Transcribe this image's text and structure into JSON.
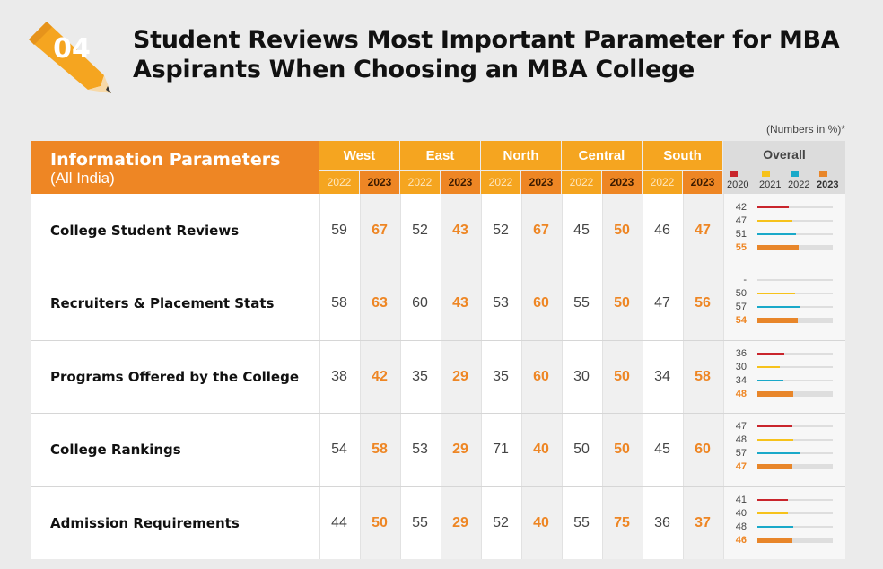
{
  "badge": {
    "number": "04"
  },
  "title": {
    "line1": "Student Reviews Most Important Parameter for MBA",
    "line2": "Aspirants When Choosing an MBA College"
  },
  "units_note": "(Numbers in %)*",
  "header": {
    "param_title": "Information Parameters",
    "param_subtitle": "(All India)",
    "overall": "Overall",
    "year_a": "2022",
    "year_b": "2023",
    "overall_years": [
      "2020",
      "2021",
      "2022",
      "2023"
    ]
  },
  "colors": {
    "2020": "#c9252c",
    "2021": "#f6c21b",
    "2022": "#1aa9c9",
    "2023": "#e8862a",
    "accent": "#ee8624",
    "header": "#f5a520"
  },
  "chart_data": {
    "type": "table",
    "units": "%",
    "regions": [
      "West",
      "East",
      "North",
      "Central",
      "South"
    ],
    "region_years": [
      "2022",
      "2023"
    ],
    "overall_years": [
      "2020",
      "2021",
      "2022",
      "2023"
    ],
    "rows": [
      {
        "name": "College Student Reviews",
        "regions": [
          [
            59,
            67
          ],
          [
            52,
            43
          ],
          [
            52,
            67
          ],
          [
            45,
            50
          ],
          [
            46,
            47
          ]
        ],
        "overall": [
          42,
          47,
          51,
          55
        ]
      },
      {
        "name": "Recruiters & Placement Stats",
        "regions": [
          [
            58,
            63
          ],
          [
            60,
            43
          ],
          [
            53,
            60
          ],
          [
            55,
            50
          ],
          [
            47,
            56
          ]
        ],
        "overall": [
          null,
          50,
          57,
          54
        ]
      },
      {
        "name": "Programs Offered by the College",
        "regions": [
          [
            38,
            42
          ],
          [
            35,
            29
          ],
          [
            35,
            60
          ],
          [
            30,
            50
          ],
          [
            34,
            58
          ]
        ],
        "overall": [
          36,
          30,
          34,
          48
        ]
      },
      {
        "name": "College Rankings",
        "regions": [
          [
            54,
            58
          ],
          [
            53,
            29
          ],
          [
            71,
            40
          ],
          [
            50,
            50
          ],
          [
            45,
            60
          ]
        ],
        "overall": [
          47,
          48,
          57,
          47
        ]
      },
      {
        "name": "Admission Requirements",
        "regions": [
          [
            44,
            50
          ],
          [
            55,
            29
          ],
          [
            52,
            40
          ],
          [
            55,
            75
          ],
          [
            36,
            37
          ]
        ],
        "overall": [
          41,
          40,
          48,
          46
        ]
      }
    ],
    "missing_label": "-",
    "bar_max": 100
  }
}
